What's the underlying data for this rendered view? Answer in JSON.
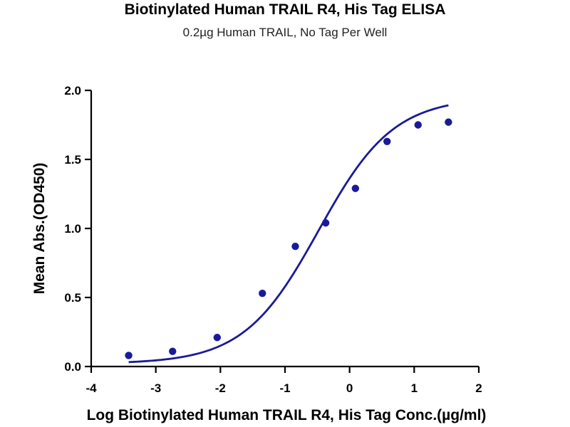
{
  "title": "Biotinylated Human TRAIL R4, His Tag ELISA",
  "subtitle": "0.2µg Human TRAIL, No Tag Per Well",
  "colors": {
    "series": "#1a1a99",
    "axis": "#000000"
  },
  "chart_data": {
    "type": "scatter",
    "title": "Biotinylated Human TRAIL R4, His Tag ELISA",
    "subtitle": "0.2µg Human TRAIL, No Tag Per Well",
    "xlabel": "Log Biotinylated Human TRAIL R4, His Tag Conc.(µg/ml)",
    "ylabel": "Mean Abs.(OD450)",
    "xlim": [
      -4,
      2
    ],
    "ylim": [
      0,
      2.0
    ],
    "xticks": [
      -4,
      -3,
      -2,
      -1,
      0,
      1,
      2
    ],
    "xtick_labels": [
      "-4",
      "-3",
      "-2",
      "-1",
      "0",
      "1",
      "2"
    ],
    "yticks": [
      0,
      0.5,
      1.0,
      1.5,
      2.0
    ],
    "ytick_labels": [
      "0.0",
      "0.5",
      "1.0",
      "1.5",
      "2.0"
    ],
    "grid": false,
    "legend": false,
    "series": [
      {
        "x": [
          -3.42,
          -2.74,
          -2.05,
          -1.35,
          -0.84,
          -0.37,
          0.09,
          0.58,
          1.06,
          1.53
        ],
        "y": [
          0.08,
          0.11,
          0.21,
          0.53,
          0.87,
          1.04,
          1.29,
          1.63,
          1.75,
          1.77
        ],
        "fit": "four-parameter logistic sigmoid",
        "fit_params": {
          "bottom": 0.02,
          "top": 1.95,
          "logEC50": -0.48,
          "hill": 0.75
        },
        "fit_range": [
          -3.42,
          1.53
        ]
      }
    ]
  }
}
